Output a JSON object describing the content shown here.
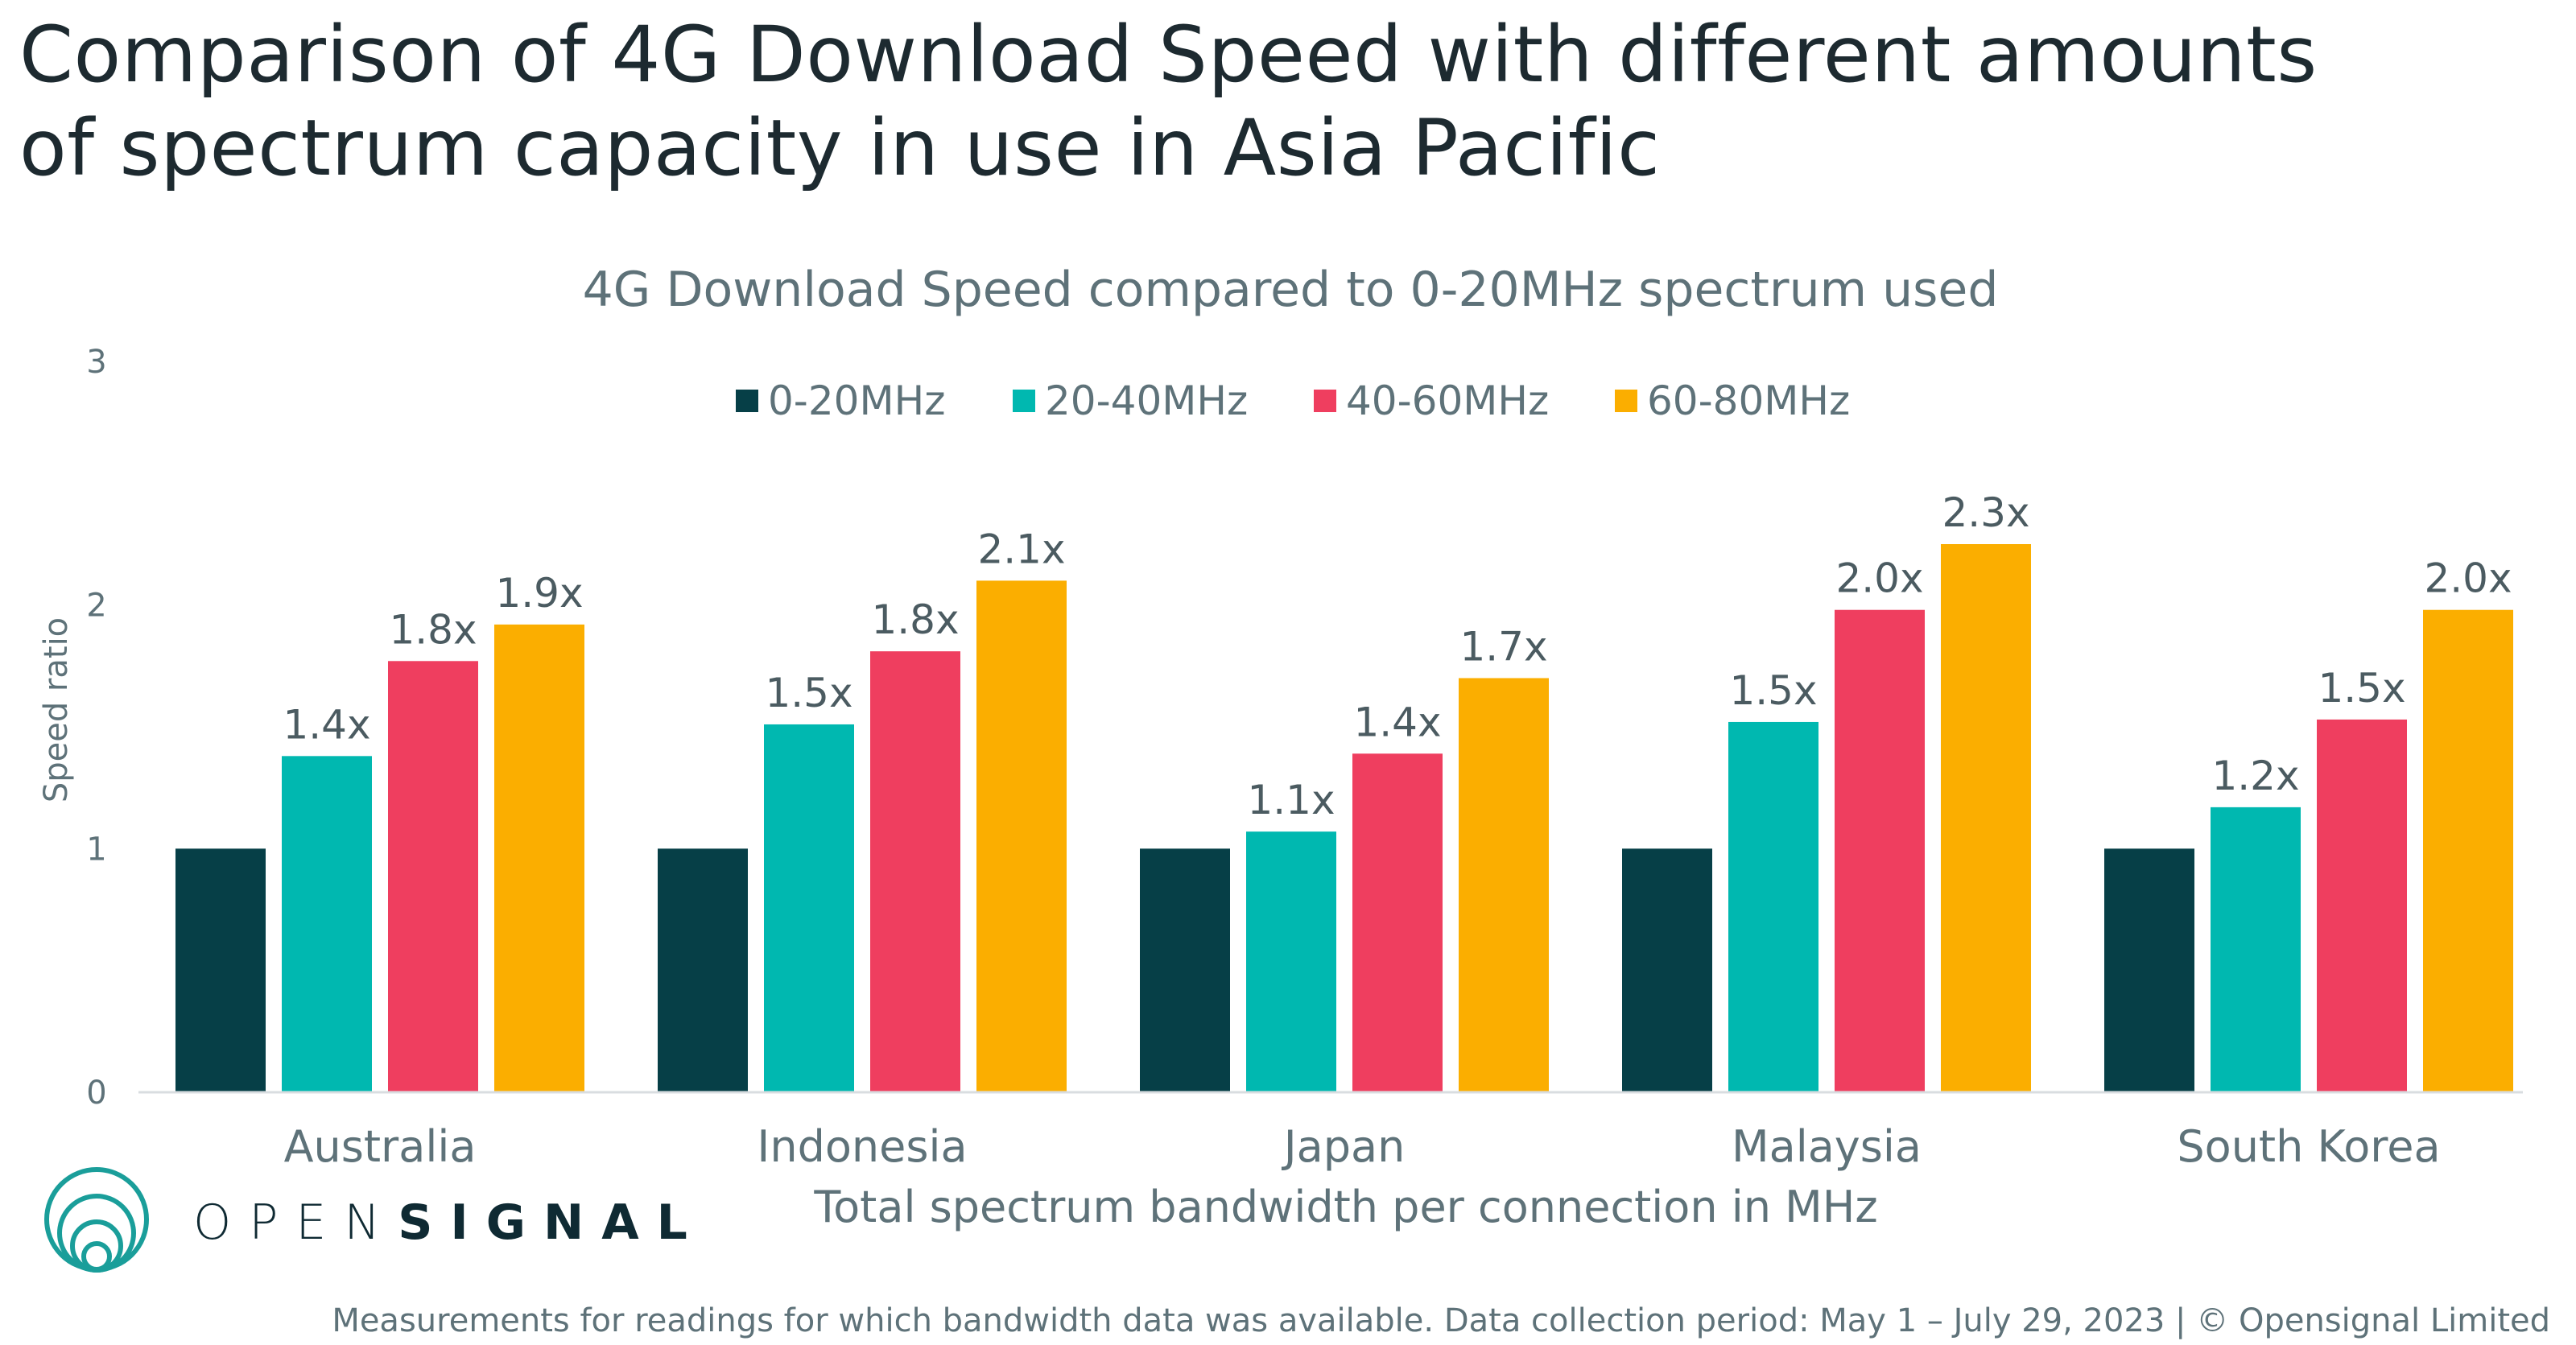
{
  "title_line1": "Comparison of 4G Download Speed with different amounts",
  "title_line2": "of spectrum capacity in use in Asia Pacific",
  "footnote": "Measurements for readings for which bandwidth data was available. Data collection period: May 1 – July 29, 2023 | © Opensignal Limited",
  "logo": {
    "text_light": "OPEN",
    "text_bold": "SIGNAL",
    "icon": "opensignal-circles-icon",
    "color": "#1a9e9a"
  },
  "chart_data": {
    "type": "bar",
    "title": "4G Download Speed compared to 0-20MHz spectrum used",
    "xlabel": "Total spectrum bandwidth per connection in MHz",
    "ylabel": "Speed ratio",
    "ylim": [
      0,
      3
    ],
    "yticks": [
      "0",
      "1",
      "2",
      "3"
    ],
    "grid": false,
    "legend_position": "top-center",
    "categories": [
      "Australia",
      "Indonesia",
      "Japan",
      "Malaysia",
      "South Korea"
    ],
    "series": [
      {
        "name": "0-20MHz",
        "color": "#063f47",
        "values": [
          1.0,
          1.0,
          1.0,
          1.0,
          1.0
        ],
        "labels": [
          "",
          "",
          "",
          "",
          ""
        ]
      },
      {
        "name": "20-40MHz",
        "color": "#00b8b0",
        "values": [
          1.38,
          1.51,
          1.07,
          1.52,
          1.17
        ],
        "labels": [
          "1.4x",
          "1.5x",
          "1.1x",
          "1.5x",
          "1.2x"
        ]
      },
      {
        "name": "40-60MHz",
        "color": "#ef3e5f",
        "values": [
          1.77,
          1.81,
          1.39,
          1.98,
          1.53
        ],
        "labels": [
          "1.8x",
          "1.8x",
          "1.4x",
          "2.0x",
          "1.5x"
        ]
      },
      {
        "name": "60-80MHz",
        "color": "#fbae00",
        "values": [
          1.92,
          2.1,
          1.7,
          2.25,
          1.98
        ],
        "labels": [
          "1.9x",
          "2.1x",
          "1.7x",
          "2.3x",
          "2.0x"
        ]
      }
    ]
  }
}
